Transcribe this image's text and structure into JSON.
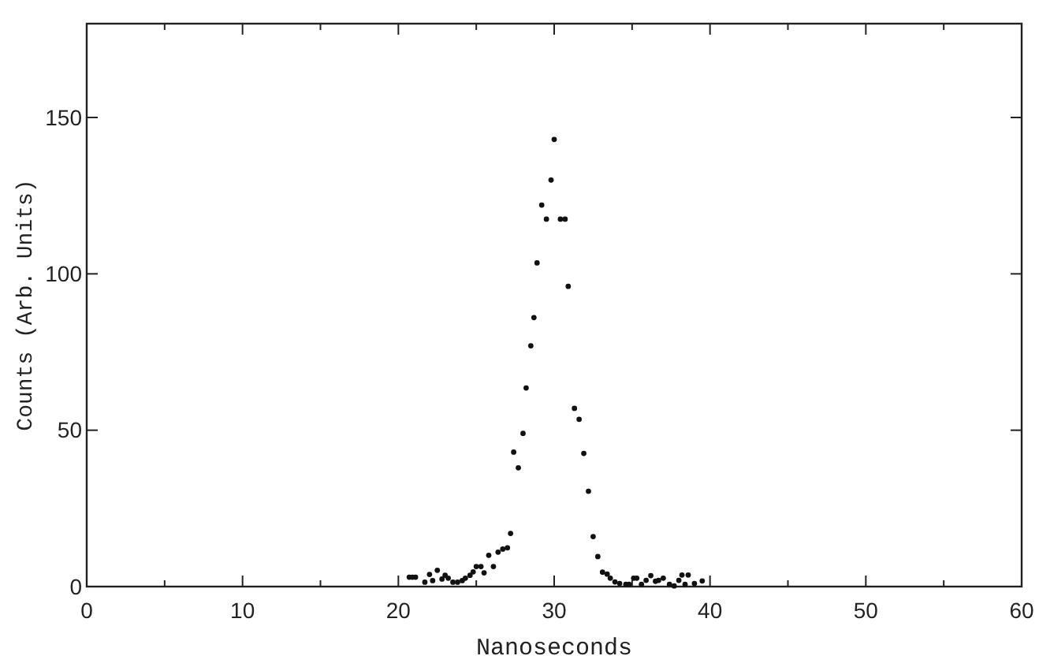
{
  "chart_data": {
    "type": "scatter",
    "xlabel": "Nanoseconds",
    "ylabel": "Counts (Arb. Units)",
    "xlim": [
      0,
      60
    ],
    "ylim": [
      0,
      180
    ],
    "xticks": [
      0,
      {
        "value": 5,
        "label": null
      },
      10,
      {
        "value": 15,
        "label": null
      },
      20,
      {
        "value": 25,
        "label": null
      },
      30,
      {
        "value": 35,
        "label": null
      },
      40,
      {
        "value": 45,
        "label": null
      },
      50,
      {
        "value": 55,
        "label": null
      },
      60
    ],
    "yticks": [
      0,
      50,
      100,
      150
    ],
    "marker": "circle",
    "grid": false,
    "series": [
      {
        "color": "#111111",
        "x": [
          20.7,
          20.9,
          21.1,
          21.7,
          22.0,
          22.2,
          22.5,
          22.8,
          23.0,
          23.2,
          23.5,
          23.8,
          24.1,
          24.3,
          24.6,
          24.8,
          25.0,
          25.3,
          25.5,
          25.8,
          26.1,
          26.4,
          26.7,
          27.0,
          27.2,
          27.4,
          27.7,
          28.0,
          28.2,
          28.5,
          28.7,
          28.9,
          29.2,
          29.5,
          29.8,
          30.0,
          30.4,
          30.7,
          30.9,
          31.3,
          31.6,
          31.9,
          32.2,
          32.5,
          32.8,
          33.1,
          33.4,
          33.6,
          33.9,
          34.2,
          34.6,
          34.8,
          35.1,
          35.3,
          35.6,
          35.9,
          36.2,
          36.5,
          36.7,
          37.0,
          37.4,
          37.7,
          38.0,
          38.2,
          38.4,
          38.6,
          39.0,
          39.5
        ],
        "values": [
          3,
          3,
          3,
          1.4,
          3.9,
          1.9,
          5.2,
          2.4,
          3.6,
          2.7,
          1.4,
          1.4,
          1.9,
          2.7,
          3.6,
          4.7,
          6.4,
          6.4,
          4.4,
          10,
          6.4,
          11,
          12,
          12.4,
          17,
          43,
          38,
          49,
          63.5,
          77,
          86,
          103.5,
          122,
          117.5,
          130,
          143,
          117.5,
          117.5,
          96,
          57,
          53.5,
          42.6,
          30.5,
          16,
          9.6,
          4.6,
          4,
          2.7,
          1.5,
          1,
          0.7,
          0.7,
          2.7,
          2.7,
          0.7,
          2,
          3.5,
          1.7,
          2,
          2.7,
          0.7,
          0.2,
          2,
          3.7,
          0.7,
          3.7,
          1,
          1.8
        ]
      }
    ]
  }
}
